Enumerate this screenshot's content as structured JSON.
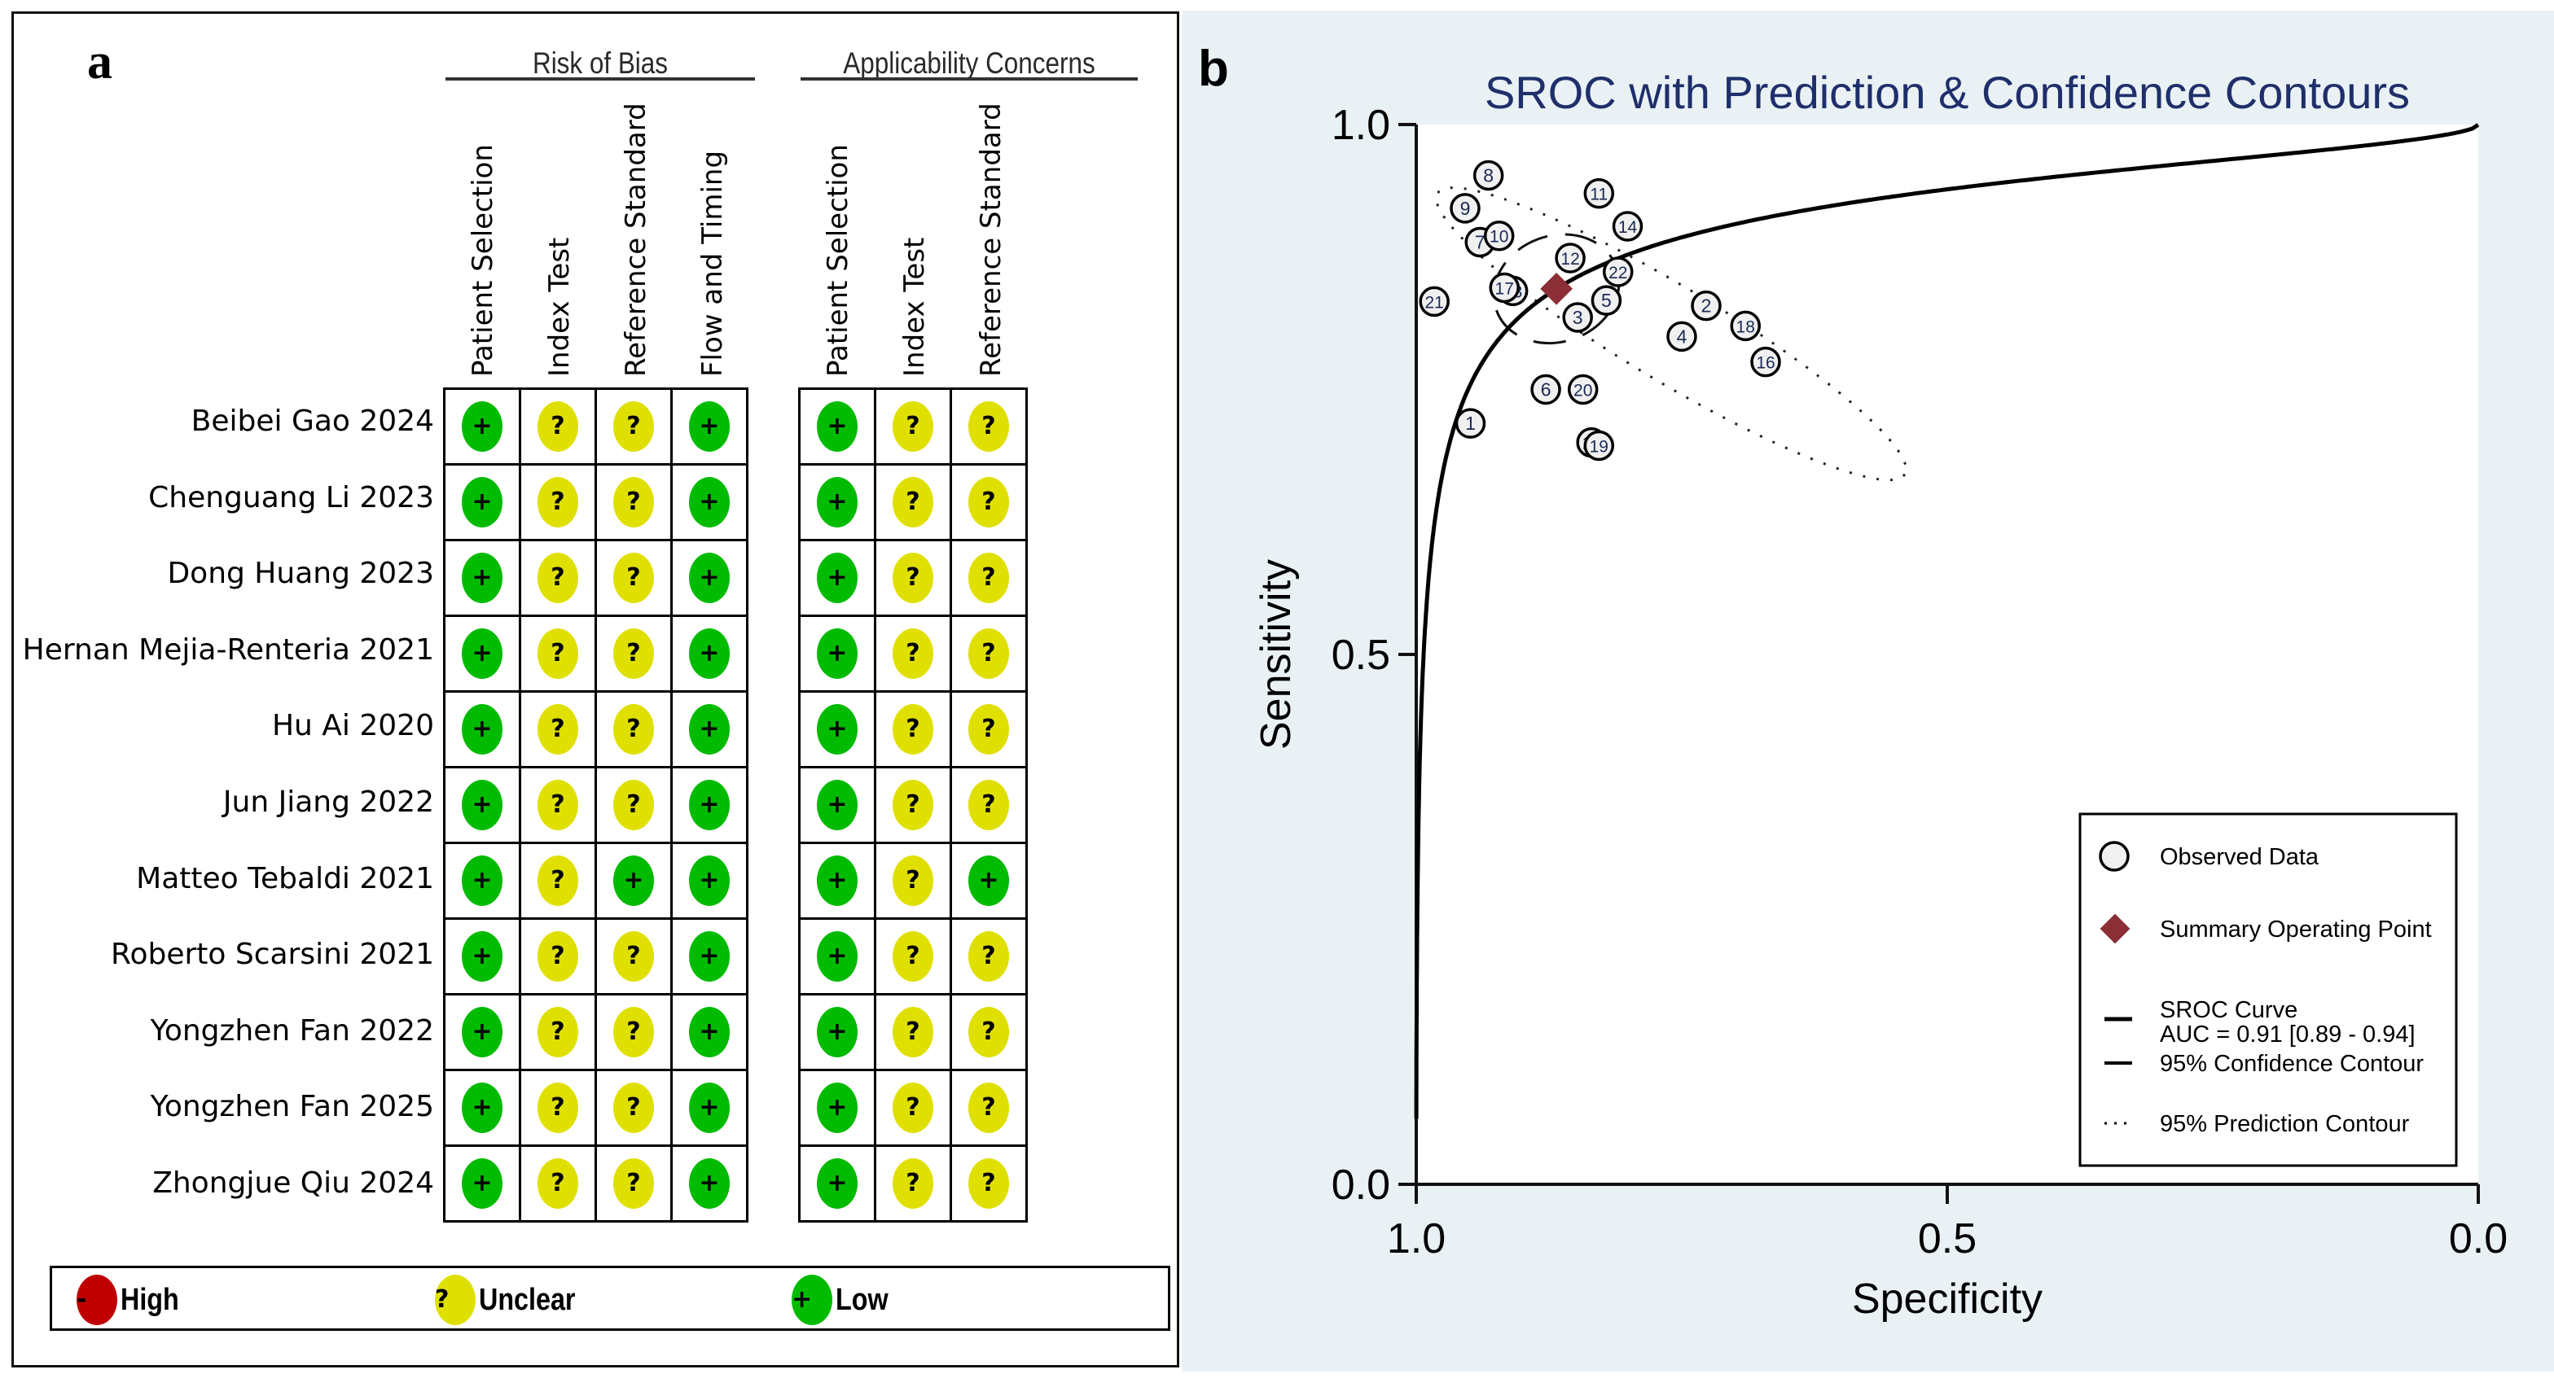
{
  "panel_a": {
    "label": "a",
    "groups": [
      {
        "title": "Risk of Bias",
        "columns": [
          "Patient Selection",
          "Index Test",
          "Reference Standard",
          "Flow and Timing"
        ]
      },
      {
        "title": "Applicability Concerns",
        "columns": [
          "Patient Selection",
          "Index Test",
          "Reference Standard"
        ]
      }
    ],
    "studies": [
      {
        "name": "Beibei Gao 2024",
        "rob": [
          "low",
          "unclear",
          "unclear",
          "low"
        ],
        "app": [
          "low",
          "unclear",
          "unclear"
        ]
      },
      {
        "name": "Chenguang Li 2023",
        "rob": [
          "low",
          "unclear",
          "unclear",
          "low"
        ],
        "app": [
          "low",
          "unclear",
          "unclear"
        ]
      },
      {
        "name": "Dong Huang 2023",
        "rob": [
          "low",
          "unclear",
          "unclear",
          "low"
        ],
        "app": [
          "low",
          "unclear",
          "unclear"
        ]
      },
      {
        "name": "Hernan Mejia-Renteria 2021",
        "rob": [
          "low",
          "unclear",
          "unclear",
          "low"
        ],
        "app": [
          "low",
          "unclear",
          "unclear"
        ]
      },
      {
        "name": "Hu Ai 2020",
        "rob": [
          "low",
          "unclear",
          "unclear",
          "low"
        ],
        "app": [
          "low",
          "unclear",
          "unclear"
        ]
      },
      {
        "name": "Jun Jiang 2022",
        "rob": [
          "low",
          "unclear",
          "unclear",
          "low"
        ],
        "app": [
          "low",
          "unclear",
          "unclear"
        ]
      },
      {
        "name": "Matteo Tebaldi 2021",
        "rob": [
          "low",
          "unclear",
          "low",
          "low"
        ],
        "app": [
          "low",
          "unclear",
          "low"
        ]
      },
      {
        "name": "Roberto Scarsini 2021",
        "rob": [
          "low",
          "unclear",
          "unclear",
          "low"
        ],
        "app": [
          "low",
          "unclear",
          "unclear"
        ]
      },
      {
        "name": "Yongzhen Fan 2022",
        "rob": [
          "low",
          "unclear",
          "unclear",
          "low"
        ],
        "app": [
          "low",
          "unclear",
          "unclear"
        ]
      },
      {
        "name": "Yongzhen Fan 2025",
        "rob": [
          "low",
          "unclear",
          "unclear",
          "low"
        ],
        "app": [
          "low",
          "unclear",
          "unclear"
        ]
      },
      {
        "name": "Zhongjue Qiu 2024",
        "rob": [
          "low",
          "unclear",
          "unclear",
          "low"
        ],
        "app": [
          "low",
          "unclear",
          "unclear"
        ]
      }
    ],
    "ratings": {
      "high": {
        "label": "High",
        "symbol": "-",
        "color": "#c00000"
      },
      "unclear": {
        "label": "Unclear",
        "symbol": "?",
        "color": "#e0e000"
      },
      "low": {
        "label": "Low",
        "symbol": "+",
        "color": "#00bb00"
      }
    },
    "legend": [
      "high",
      "unclear",
      "low"
    ]
  },
  "panel_b": {
    "label": "b"
  },
  "chart_data": {
    "type": "scatter",
    "title": "SROC with Prediction & Confidence Contours",
    "xlabel": "Specificity",
    "ylabel": "Sensitivity",
    "xlim": [
      1.0,
      0.0
    ],
    "ylim": [
      0.0,
      1.0
    ],
    "x_ticks": [
      "1.0",
      "0.5",
      "0.0"
    ],
    "y_ticks": [
      "0.0",
      "0.5",
      "1.0"
    ],
    "x_tick_values": [
      1.0,
      0.5,
      0.0
    ],
    "y_tick_values": [
      0.0,
      0.5,
      1.0
    ],
    "grid": false,
    "legend_position": "bottom-right",
    "observed": [
      {
        "id": "1",
        "spec": 0.949,
        "sens": 0.718
      },
      {
        "id": "2",
        "spec": 0.727,
        "sens": 0.829
      },
      {
        "id": "3",
        "spec": 0.848,
        "sens": 0.818
      },
      {
        "id": "4",
        "spec": 0.75,
        "sens": 0.8
      },
      {
        "id": "5",
        "spec": 0.821,
        "sens": 0.834
      },
      {
        "id": "6",
        "spec": 0.878,
        "sens": 0.75
      },
      {
        "id": "7",
        "spec": 0.94,
        "sens": 0.889
      },
      {
        "id": "8",
        "spec": 0.932,
        "sens": 0.952
      },
      {
        "id": "9",
        "spec": 0.954,
        "sens": 0.921
      },
      {
        "id": "10",
        "spec": 0.922,
        "sens": 0.895
      },
      {
        "id": "11",
        "spec": 0.828,
        "sens": 0.935
      },
      {
        "id": "12",
        "spec": 0.855,
        "sens": 0.874
      },
      {
        "id": "13",
        "spec": 0.909,
        "sens": 0.843
      },
      {
        "id": "14",
        "spec": 0.801,
        "sens": 0.904
      },
      {
        "id": "15",
        "spec": 0.835,
        "sens": 0.7
      },
      {
        "id": "16",
        "spec": 0.671,
        "sens": 0.776
      },
      {
        "id": "17",
        "spec": 0.917,
        "sens": 0.846
      },
      {
        "id": "18",
        "spec": 0.69,
        "sens": 0.81
      },
      {
        "id": "19",
        "spec": 0.828,
        "sens": 0.697
      },
      {
        "id": "20",
        "spec": 0.843,
        "sens": 0.75
      },
      {
        "id": "21",
        "spec": 0.983,
        "sens": 0.833
      },
      {
        "id": "22",
        "spec": 0.81,
        "sens": 0.861
      }
    ],
    "summary_point": {
      "spec": 0.868,
      "sens": 0.845
    },
    "sroc_curve": {
      "auc": 0.91,
      "auc_ci": [
        0.89,
        0.94
      ]
    },
    "confidence_contour": {
      "center_spec": 0.868,
      "center_sens": 0.845,
      "spec_halfwidth": 0.06,
      "sens_halfwidth": 0.05
    },
    "prediction_contour": {
      "ends": [
        {
          "spec": 0.98,
          "sens": 0.935
        },
        {
          "spec": 0.54,
          "sens": 0.67
        }
      ]
    },
    "legend": [
      {
        "key": "observed",
        "label": "Observed Data"
      },
      {
        "key": "summary",
        "label": "Summary Operating Point"
      },
      {
        "key": "sroc",
        "label": "SROC Curve",
        "sublabel": "AUC = 0.91 [0.89 - 0.94]"
      },
      {
        "key": "confidence",
        "label": "95% Confidence Contour"
      },
      {
        "key": "prediction",
        "label": "95% Prediction Contour"
      }
    ],
    "colors": {
      "summary": "#8b2e35",
      "marker_fill": "#f0f0f0",
      "title": "#1f2f6b",
      "background": "#e9f1f4"
    }
  }
}
